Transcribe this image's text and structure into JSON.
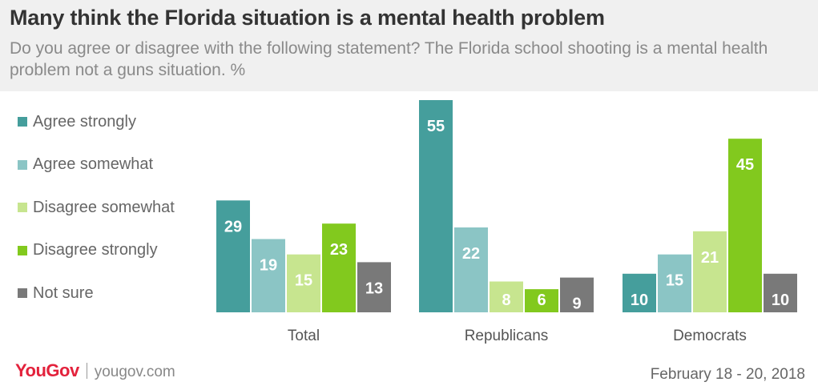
{
  "header": {
    "title": "Many think the Florida situation is a mental health problem",
    "subtitle": "Do you agree or disagree with the following statement? The Florida school shooting is a mental health problem not a guns situation. %"
  },
  "footer": {
    "brand": "YouGov",
    "url": "yougov.com",
    "date_range": "February 18 - 20, 2018"
  },
  "colors": {
    "agree_strongly": "#459e9c",
    "agree_somewhat": "#8bc5c5",
    "disagree_somewhat": "#c7e58f",
    "disagree_strongly": "#82c91e",
    "not_sure": "#797979",
    "brand": "#e3223c"
  },
  "chart_data": {
    "type": "bar",
    "title": "Many think the Florida situation is a mental health problem",
    "xlabel": "",
    "ylabel": "%",
    "ylim": [
      0,
      55
    ],
    "grid": false,
    "legend_position": "left",
    "categories": [
      "Total",
      "Republicans",
      "Democrats"
    ],
    "series": [
      {
        "name": "Agree strongly",
        "key": "agree_strongly",
        "values": [
          29,
          55,
          10
        ]
      },
      {
        "name": "Agree somewhat",
        "key": "agree_somewhat",
        "values": [
          19,
          22,
          15
        ]
      },
      {
        "name": "Disagree somewhat",
        "key": "disagree_somewhat",
        "values": [
          15,
          8,
          21
        ]
      },
      {
        "name": "Disagree strongly",
        "key": "disagree_strongly",
        "values": [
          23,
          6,
          45
        ]
      },
      {
        "name": "Not sure",
        "key": "not_sure",
        "values": [
          13,
          9,
          10
        ]
      }
    ]
  }
}
